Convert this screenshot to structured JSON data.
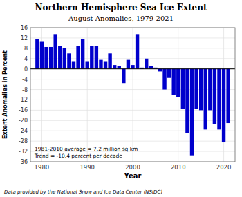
{
  "chart_data": {
    "type": "bar",
    "title": "Northern Hemisphere Sea Ice Extent",
    "subtitle": "August Anomalies, 1979-2021",
    "x_label": "Year",
    "y_label": "Extent Anomalies in Percent",
    "annotations": [
      "1981-2010 average = 7.2 million sq km",
      "Trend = -10.4 percent per decade"
    ],
    "footer": "Data provided by the National Snow and Ice Data Center (NSIDC)",
    "color": "#0000CC",
    "x": [
      1979,
      1980,
      1981,
      1982,
      1983,
      1984,
      1985,
      1986,
      1987,
      1988,
      1989,
      1990,
      1991,
      1992,
      1993,
      1994,
      1995,
      1996,
      1997,
      1998,
      1999,
      2000,
      2001,
      2002,
      2003,
      2004,
      2005,
      2006,
      2007,
      2008,
      2009,
      2010,
      2011,
      2012,
      2013,
      2014,
      2015,
      2016,
      2017,
      2018,
      2019,
      2020,
      2021
    ],
    "values": [
      11.5,
      10.5,
      8.5,
      8.5,
      13.5,
      9.0,
      8.0,
      6.0,
      3.0,
      9.0,
      11.5,
      3.0,
      9.0,
      9.0,
      3.5,
      3.0,
      6.0,
      1.5,
      1.0,
      -5.5,
      3.5,
      1.5,
      13.5,
      0.5,
      4.0,
      1.0,
      0.5,
      -1.0,
      -8.0,
      -3.5,
      -10.0,
      -11.0,
      -15.5,
      -25.0,
      -33.5,
      -15.5,
      -16.0,
      -23.5,
      -16.0,
      -21.5,
      -23.5,
      -28.5,
      -21.0
    ],
    "xlim": [
      1977.5,
      2022.5
    ],
    "xticks": [
      1980,
      1990,
      2000,
      2010,
      2020
    ],
    "ylim": [
      -36,
      16
    ],
    "yticks": [
      -36,
      -32,
      -28,
      -24,
      -20,
      -16,
      -12,
      -8,
      -4,
      0,
      4,
      8,
      12,
      16
    ],
    "grid": true
  }
}
